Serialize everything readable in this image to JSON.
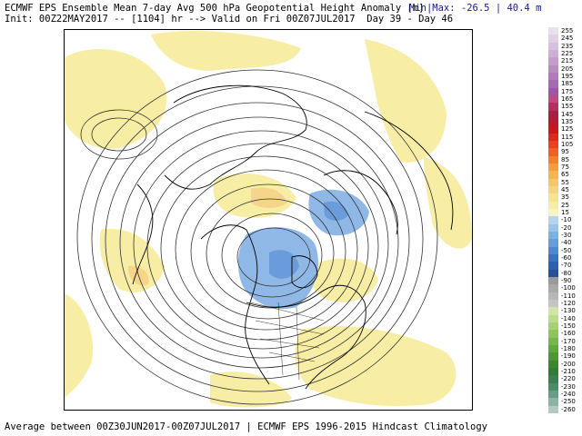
{
  "header": {
    "title": "ECMWF EPS Ensemble Mean 7-day Avg 500 hPa Geopotential Height Anomaly [m]",
    "init": "Init: 00Z22MAY2017 -- [1104] hr --> Valid on Fri 00Z07JUL2017  Day 39 - Day 46",
    "minmax": "Min|Max: -26.5 | 40.4 m"
  },
  "footer": {
    "text": "Average between 00Z30JUN2017-00Z07JUL2017 | ECMWF EPS 1996-2015 Hindcast Climatology"
  },
  "map": {
    "projection": "north-polar-stereographic",
    "anomaly_colors": {
      "positive": "#f7eda4",
      "positive_strong": "#f2c57a",
      "negative": "#8fb8e6",
      "negative_strong": "#5a8fd6"
    },
    "contour_color": "#333333",
    "coastline_color": "#000000"
  },
  "legend": {
    "entries": [
      {
        "label": "255",
        "color": "#e9e1ec"
      },
      {
        "label": "245",
        "color": "#e0d2e6"
      },
      {
        "label": "235",
        "color": "#d6c1de"
      },
      {
        "label": "225",
        "color": "#ccb0d6"
      },
      {
        "label": "215",
        "color": "#c39ecd"
      },
      {
        "label": "205",
        "color": "#b98cc4"
      },
      {
        "label": "195",
        "color": "#b07abb"
      },
      {
        "label": "185",
        "color": "#a768b2"
      },
      {
        "label": "175",
        "color": "#9e56a9"
      },
      {
        "label": "165",
        "color": "#c24a80"
      },
      {
        "label": "155",
        "color": "#b53060"
      },
      {
        "label": "145",
        "color": "#a81f45"
      },
      {
        "label": "135",
        "color": "#b8192e"
      },
      {
        "label": "125",
        "color": "#c8181e"
      },
      {
        "label": "115",
        "color": "#d92a1a"
      },
      {
        "label": "105",
        "color": "#e8431c"
      },
      {
        "label": "95",
        "color": "#f0611f"
      },
      {
        "label": "85",
        "color": "#f3802a"
      },
      {
        "label": "75",
        "color": "#f59d3a"
      },
      {
        "label": "65",
        "color": "#f6b54e"
      },
      {
        "label": "55",
        "color": "#f5c766"
      },
      {
        "label": "45",
        "color": "#f5d680"
      },
      {
        "label": "35",
        "color": "#f6e394"
      },
      {
        "label": "25",
        "color": "#f7eca6"
      },
      {
        "label": "15",
        "color": "#f8f4c4"
      },
      {
        "label": "-10",
        "color": "#b7d3f0"
      },
      {
        "label": "-20",
        "color": "#9cc2ea"
      },
      {
        "label": "-30",
        "color": "#7fb0e3"
      },
      {
        "label": "-40",
        "color": "#659ddb"
      },
      {
        "label": "-50",
        "color": "#4d88d0"
      },
      {
        "label": "-60",
        "color": "#3a72c2"
      },
      {
        "label": "-70",
        "color": "#2d5fb0"
      },
      {
        "label": "-80",
        "color": "#284f9c"
      },
      {
        "label": "-90",
        "color": "#9a9a9a"
      },
      {
        "label": "-100",
        "color": "#a9a9a9"
      },
      {
        "label": "-110",
        "color": "#b7b7b7"
      },
      {
        "label": "-120",
        "color": "#c5c5c5"
      },
      {
        "label": "-130",
        "color": "#cfe6a8"
      },
      {
        "label": "-140",
        "color": "#bcdc8c"
      },
      {
        "label": "-150",
        "color": "#a6d172"
      },
      {
        "label": "-160",
        "color": "#8fc45c"
      },
      {
        "label": "-170",
        "color": "#78b64a"
      },
      {
        "label": "-180",
        "color": "#62a73c"
      },
      {
        "label": "-190",
        "color": "#4e9632"
      },
      {
        "label": "-200",
        "color": "#3e852c"
      },
      {
        "label": "-210",
        "color": "#347a3a"
      },
      {
        "label": "-220",
        "color": "#3c7d52"
      },
      {
        "label": "-230",
        "color": "#4d8a6a"
      },
      {
        "label": "-240",
        "color": "#6a9c84"
      },
      {
        "label": "-250",
        "color": "#8fb3a2"
      },
      {
        "label": "-260",
        "color": "#b3cbbf"
      }
    ]
  }
}
